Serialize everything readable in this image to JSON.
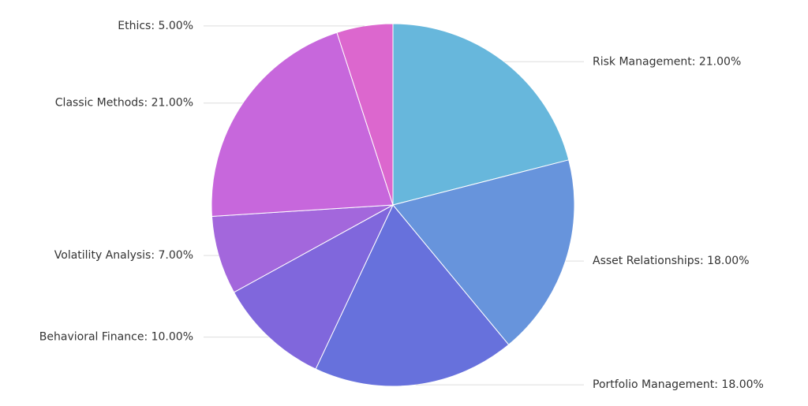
{
  "chart_data": {
    "type": "pie",
    "values": [
      21,
      18,
      18,
      10,
      7,
      21,
      5
    ],
    "value_labels": [
      "Risk Management: 21.00%",
      "Asset Relationships: 18.00%",
      "Portfolio Management: 18.00%",
      "Behavioral Finance: 10.00%",
      "Volatility Analysis: 7.00%",
      "Classic Methods: 21.00%",
      "Ethics: 5.00%"
    ],
    "colors": [
      "#67b7dc",
      "#6794dc",
      "#6771dc",
      "#8067dc",
      "#a367dc",
      "#c767dc",
      "#dc67ce"
    ]
  }
}
